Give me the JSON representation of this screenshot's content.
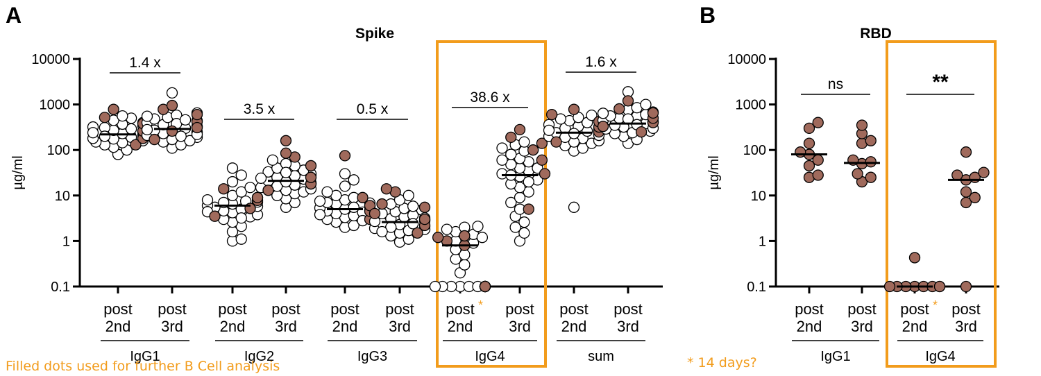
{
  "colors": {
    "filled_dot": "#a06a5c",
    "hollow_dot": "#ffffff",
    "dot_stroke": "#000000",
    "highlight": "#f29c1c",
    "axis": "#000000"
  },
  "footnotes": {
    "filled_dots": "Filled dots used for further B Cell analysis",
    "days": "* 14 days?"
  },
  "chart_data": [
    {
      "panel_label": "A",
      "type": "scatter",
      "title": "Spike",
      "ylabel": "µg/ml",
      "yscale": "log",
      "ylim": [
        0.1,
        10000
      ],
      "yticks": [
        "0.1",
        "1",
        "10",
        "100",
        "1000",
        "10000"
      ],
      "highlighted_group": "IgG4",
      "groups": [
        {
          "name": "IgG1",
          "comparison": "1.4 x",
          "categories": [
            {
              "label": [
                "post",
                "2nd"
              ],
              "marker": "",
              "median": 220,
              "hollow": [
                80,
                100,
                115,
                130,
                145,
                160,
                175,
                190,
                210,
                230,
                250,
                270,
                290,
                310,
                340,
                370,
                400,
                450,
                500,
                560,
                150,
                180,
                260,
                320,
                200,
                240
              ],
              "filled": [
                130,
                180,
                260,
                380,
                520,
                780
              ]
            },
            {
              "label": [
                "post",
                "3rd"
              ],
              "marker": "",
              "median": 290,
              "hollow": [
                110,
                130,
                150,
                170,
                190,
                210,
                230,
                250,
                270,
                300,
                330,
                360,
                400,
                440,
                480,
                520,
                580,
                650,
                1800,
                160,
                200,
                240,
                280,
                320,
                380,
                460,
                550,
                220
              ],
              "filled": [
                170,
                260,
                420,
                600,
                780,
                950,
                310
              ]
            }
          ]
        },
        {
          "name": "IgG2",
          "comparison": "3.5 x",
          "categories": [
            {
              "label": [
                "post",
                "2nd"
              ],
              "marker": "",
              "median": 6,
              "hollow": [
                1,
                1.1,
                1.6,
                2.1,
                2.6,
                3,
                3.4,
                3.8,
                4.2,
                4.6,
                5,
                5.5,
                6,
                6.5,
                7,
                7.5,
                8,
                9,
                10,
                12,
                15,
                20,
                28,
                40,
                3.2,
                4.4,
                5.8,
                7.2
              ],
              "filled": [
                3.5,
                5.2,
                7.8,
                9,
                14
              ]
            },
            {
              "label": [
                "post",
                "3rd"
              ],
              "marker": "",
              "median": 21,
              "hollow": [
                5.5,
                7,
                8.5,
                10,
                11,
                12,
                13,
                15,
                17,
                19,
                21,
                23,
                25,
                28,
                30,
                33,
                36,
                40,
                45,
                50,
                60,
                16,
                20,
                24,
                27,
                32,
                14,
                18
              ],
              "filled": [
                13,
                18,
                25,
                45,
                70,
                85,
                160
              ]
            }
          ]
        },
        {
          "name": "IgG3",
          "comparison": "0.5 x",
          "categories": [
            {
              "label": [
                "post",
                "2nd"
              ],
              "marker": "",
              "median": 5,
              "hollow": [
                2,
                2.2,
                2.6,
                3,
                3.3,
                3.6,
                4,
                4.3,
                4.6,
                5,
                5.3,
                5.7,
                6,
                6.5,
                7,
                7.5,
                8,
                9,
                10,
                12,
                16,
                22,
                30,
                3.8,
                4.8,
                5.5,
                6.8,
                2.8
              ],
              "filled": [
                3,
                4.5,
                6,
                9,
                75
              ]
            },
            {
              "label": [
                "post",
                "3rd"
              ],
              "marker": "",
              "median": 2.6,
              "hollow": [
                0.95,
                1.1,
                1.3,
                1.5,
                1.7,
                1.9,
                2.1,
                2.3,
                2.5,
                2.7,
                2.9,
                3.1,
                3.4,
                3.7,
                4,
                4.4,
                4.8,
                5.2,
                5.8,
                6.5,
                8,
                10,
                2,
                2.4,
                2.8,
                3.2,
                1.6,
                1.8
              ],
              "filled": [
                1.5,
                2.2,
                3,
                4,
                5.5,
                6.5,
                12,
                14
              ]
            }
          ]
        },
        {
          "name": "IgG4",
          "comparison": "38.6 x",
          "categories": [
            {
              "label": [
                "post",
                "2nd"
              ],
              "marker": "*",
              "median": 0.8,
              "hollow": [
                0.1,
                0.1,
                0.1,
                0.1,
                0.1,
                0.1,
                0.1,
                0.1,
                0.1,
                0.1,
                0.1,
                0.1,
                0.1,
                0.1,
                0.1,
                0.2,
                0.3,
                0.4,
                0.5,
                0.65,
                0.9,
                1.0,
                1.4,
                1.6,
                1.8,
                2.0,
                2.1,
                1.2
              ],
              "filled": [
                0.8,
                1.0,
                1.2,
                1.3,
                0.1,
                0.1
              ]
            },
            {
              "label": [
                "post",
                "3rd"
              ],
              "marker": "",
              "median": 28,
              "hollow": [
                1,
                1.5,
                2,
                2.6,
                3.5,
                5,
                7,
                9,
                12,
                15,
                18,
                22,
                26,
                30,
                35,
                40,
                48,
                55,
                65,
                80,
                95,
                110,
                130,
                150,
                20,
                28,
                40,
                60
              ],
              "filled": [
                5,
                30,
                60,
                100,
                140,
                190,
                280
              ]
            }
          ]
        },
        {
          "name": "sum",
          "comparison": "1.6 x",
          "categories": [
            {
              "label": [
                "post",
                "2nd"
              ],
              "marker": "",
              "median": 240,
              "hollow": [
                5.5,
                95,
                110,
                125,
                140,
                160,
                180,
                200,
                220,
                240,
                260,
                280,
                300,
                330,
                360,
                400,
                440,
                480,
                520,
                580,
                150,
                190,
                230,
                270,
                310,
                210
              ],
              "filled": [
                150,
                250,
                320,
                420,
                600,
                780
              ]
            },
            {
              "label": [
                "post",
                "3rd"
              ],
              "marker": "",
              "median": 380,
              "hollow": [
                140,
                170,
                200,
                230,
                260,
                290,
                320,
                350,
                380,
                410,
                450,
                500,
                550,
                600,
                680,
                760,
                850,
                1000,
                1900,
                240,
                300,
                360,
                420,
                480,
                560,
                640
              ],
              "filled": [
                250,
                330,
                400,
                500,
                650,
                800,
                1200
              ]
            }
          ]
        }
      ]
    },
    {
      "panel_label": "B",
      "type": "scatter",
      "title": "RBD",
      "ylabel": "µg/ml",
      "yscale": "log",
      "ylim": [
        0.1,
        10000
      ],
      "yticks": [
        "0.1",
        "1",
        "10",
        "100",
        "1000",
        "10000"
      ],
      "highlighted_group": "IgG4",
      "groups": [
        {
          "name": "IgG1",
          "comparison": "ns",
          "categories": [
            {
              "label": [
                "post",
                "2nd"
              ],
              "marker": "",
              "median": 80,
              "hollow": [],
              "filled": [
                25,
                28,
                45,
                60,
                80,
                90,
                140,
                300,
                400
              ]
            },
            {
              "label": [
                "post",
                "3rd"
              ],
              "marker": "",
              "median": 52,
              "hollow": [],
              "filled": [
                20,
                25,
                30,
                50,
                55,
                60,
                140,
                160,
                230,
                350
              ]
            }
          ]
        },
        {
          "name": "IgG4",
          "comparison": "**",
          "categories": [
            {
              "label": [
                "post",
                "2nd"
              ],
              "marker": "*",
              "median": 0.1,
              "hollow": [],
              "filled": [
                0.1,
                0.1,
                0.1,
                0.1,
                0.1,
                0.1,
                0.1,
                0.1,
                0.43
              ]
            },
            {
              "label": [
                "post",
                "3rd"
              ],
              "marker": "",
              "median": 22,
              "hollow": [],
              "filled": [
                0.1,
                7,
                9,
                12,
                22,
                25,
                28,
                32,
                90
              ]
            }
          ]
        }
      ]
    }
  ]
}
